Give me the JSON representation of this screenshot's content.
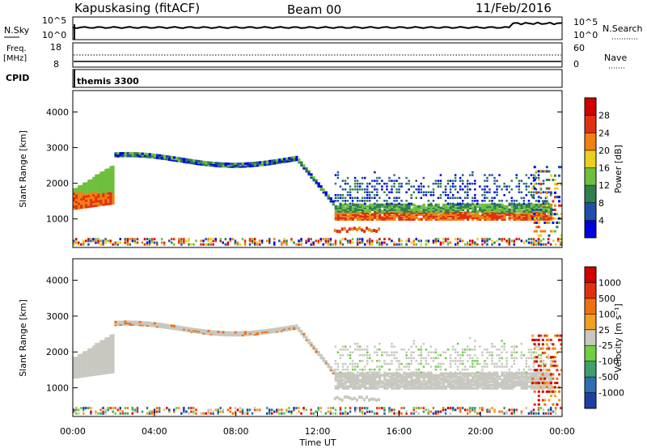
{
  "header": {
    "station": "Kapuskasing (fitACF)",
    "beam": "Beam 00",
    "date": "11/Feb/2016"
  },
  "noise_panel": {
    "left_label": "N.Sky",
    "left_ticks": [
      "10^5",
      "10^0"
    ],
    "right_label": "N.Search",
    "right_ticks": [
      "10^5",
      "10^0"
    ]
  },
  "freq_panel": {
    "left_label_1": "Freq.",
    "left_label_2": "[MHz]",
    "left_ticks": [
      "18",
      "8"
    ],
    "right_label": "Nave",
    "right_ticks": [
      "60",
      "0"
    ]
  },
  "cpid": {
    "label": "CPID",
    "value": "themis 3300"
  },
  "chart_data": [
    {
      "type": "heatmap",
      "name": "power",
      "ylabel": "Slant Range [km]",
      "ylim": [
        200,
        4600
      ],
      "yticks": [
        1000,
        2000,
        3000,
        4000
      ],
      "xlim": [
        0,
        24
      ],
      "colorbar": {
        "label": "Power [dB]",
        "ticks": [
          "28",
          "24",
          "20",
          "16",
          "12",
          "8",
          "4"
        ],
        "colors": [
          "#0000dd",
          "#1f4fa8",
          "#2f7f4f",
          "#6fbf3f",
          "#e8d020",
          "#f08010",
          "#e03010",
          "#d00000"
        ]
      }
    },
    {
      "type": "heatmap",
      "name": "velocity",
      "ylabel": "Slant Range [km]",
      "ylim": [
        200,
        4600
      ],
      "yticks": [
        1000,
        2000,
        3000,
        4000
      ],
      "xlim": [
        0,
        24
      ],
      "xlabel": "Time UT",
      "xticks": [
        "00:00",
        "04:00",
        "08:00",
        "12:00",
        "16:00",
        "20:00",
        "00:00"
      ],
      "colorbar": {
        "label": "Velocity [m s⁻¹]",
        "ticks": [
          "1000",
          "500",
          "100",
          "25",
          "-25",
          "-100",
          "-500",
          "-1000"
        ],
        "colors": [
          "#1f3fa0",
          "#2f6fb0",
          "#3f9f6f",
          "#6fcf3f",
          "#c8c8c0",
          "#f0a020",
          "#f07010",
          "#e03010",
          "#d00000"
        ]
      }
    }
  ]
}
